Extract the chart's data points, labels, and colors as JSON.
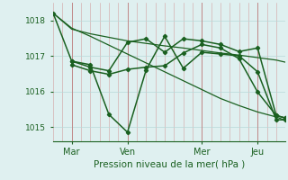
{
  "xlabel": "Pression niveau de la mer( hPa )",
  "background_color": "#dff0f0",
  "line_color": "#1a6020",
  "x_ticks_labels": [
    "Mar",
    "Ven",
    "Mer",
    "Jeu"
  ],
  "x_ticks_pos": [
    8,
    32,
    64,
    88
  ],
  "xlim": [
    0,
    100
  ],
  "ylim": [
    1014.6,
    1018.5
  ],
  "yticks": [
    1015,
    1016,
    1017,
    1018
  ],
  "minor_vlines": [
    0,
    4,
    8,
    12,
    16,
    20,
    24,
    28,
    32,
    36,
    40,
    44,
    48,
    52,
    56,
    60,
    64,
    68,
    72,
    76,
    80,
    84,
    88,
    92,
    96,
    100
  ],
  "major_vlines": [
    8,
    32,
    64,
    88
  ],
  "vlines_color": "#d4a0a0",
  "major_vlines_color": "#c08888",
  "hlines_color": "#b8d8d8",
  "lines": [
    {
      "x": [
        0,
        8,
        16,
        24,
        32,
        40,
        48,
        56,
        64,
        72,
        80,
        88,
        96,
        100
      ],
      "y": [
        1018.2,
        1017.75,
        1017.62,
        1017.52,
        1017.42,
        1017.35,
        1017.28,
        1017.22,
        1017.15,
        1017.08,
        1017.02,
        1016.95,
        1016.88,
        1016.82
      ],
      "marker": null,
      "lw": 0.9
    },
    {
      "x": [
        0,
        8,
        16,
        24,
        32,
        40,
        48,
        56,
        64,
        72,
        80,
        88,
        96,
        100
      ],
      "y": [
        1018.2,
        1017.78,
        1017.55,
        1017.3,
        1017.05,
        1016.8,
        1016.55,
        1016.3,
        1016.05,
        1015.8,
        1015.6,
        1015.42,
        1015.28,
        1015.18
      ],
      "marker": null,
      "lw": 0.9
    },
    {
      "x": [
        0,
        8,
        16,
        24,
        32,
        40,
        48,
        56,
        64,
        72,
        80,
        88,
        96,
        100
      ],
      "y": [
        1018.2,
        1016.85,
        1016.75,
        1015.35,
        1014.85,
        1016.6,
        1017.55,
        1016.65,
        1017.1,
        1017.05,
        1017.0,
        1016.55,
        1015.2,
        1015.2
      ],
      "marker": "D",
      "lw": 1.1,
      "ms": 2.2
    },
    {
      "x": [
        8,
        16,
        24,
        32,
        40,
        48,
        56,
        64,
        72,
        80,
        88,
        96,
        100
      ],
      "y": [
        1016.85,
        1016.68,
        1016.58,
        1017.38,
        1017.48,
        1017.1,
        1017.48,
        1017.42,
        1017.32,
        1017.12,
        1017.22,
        1015.32,
        1015.25
      ],
      "marker": "D",
      "lw": 1.1,
      "ms": 2.2
    },
    {
      "x": [
        8,
        16,
        24,
        32,
        40,
        48,
        56,
        64,
        72,
        80,
        88,
        96,
        100
      ],
      "y": [
        1016.75,
        1016.58,
        1016.48,
        1016.62,
        1016.68,
        1016.72,
        1017.08,
        1017.32,
        1017.22,
        1016.92,
        1015.98,
        1015.32,
        1015.25
      ],
      "marker": "D",
      "lw": 1.1,
      "ms": 2.2
    }
  ]
}
